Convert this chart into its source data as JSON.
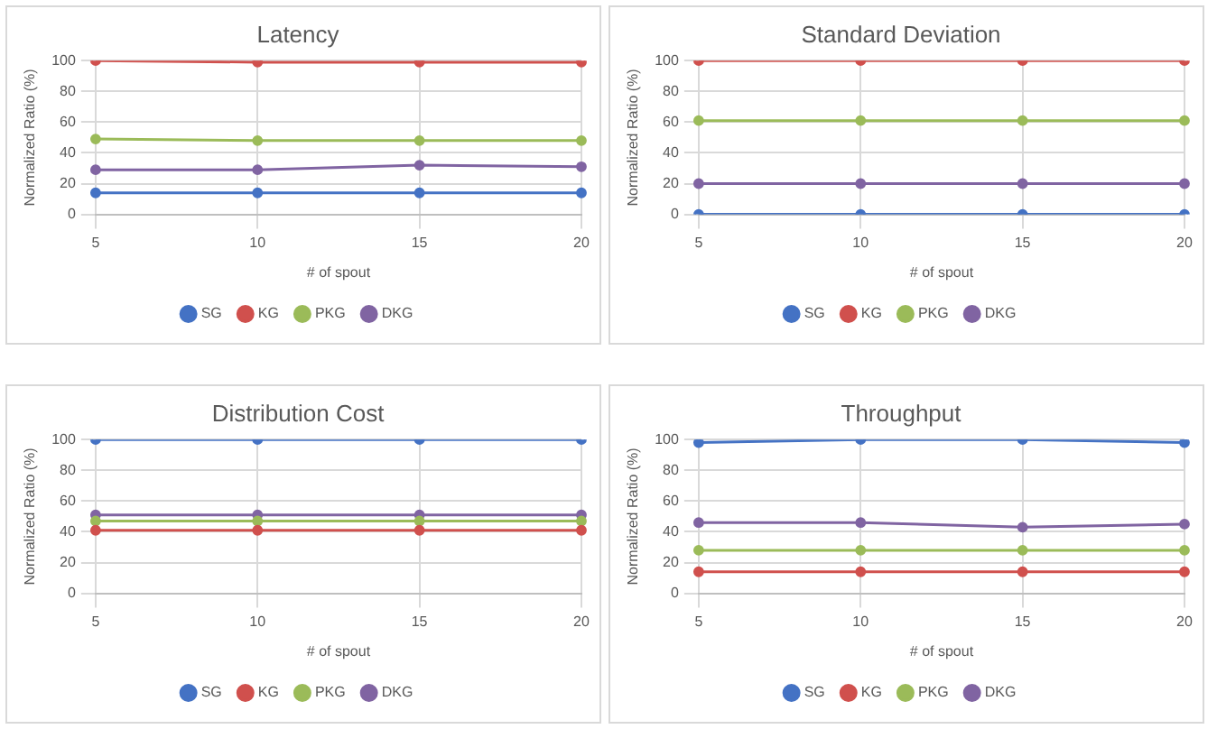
{
  "chart_data": [
    {
      "type": "line",
      "title": "Latency",
      "xlabel": "# of spout",
      "ylabel": "Normalized Ratio (%)",
      "categories": [
        "5",
        "10",
        "15",
        "20"
      ],
      "ylim": [
        0,
        100
      ],
      "yticks": [
        0,
        20,
        40,
        60,
        80,
        100
      ],
      "grid": true,
      "legend": "bottom",
      "marker": "circle",
      "series": [
        {
          "name": "SG",
          "color": "#4472c4",
          "values": [
            14,
            14,
            14,
            14
          ]
        },
        {
          "name": "KG",
          "color": "#d0504d",
          "values": [
            100,
            99,
            99,
            99
          ]
        },
        {
          "name": "PKG",
          "color": "#9bbb59",
          "values": [
            49,
            48,
            48,
            48
          ]
        },
        {
          "name": "DKG",
          "color": "#8064a2",
          "values": [
            29,
            29,
            32,
            31
          ]
        }
      ]
    },
    {
      "type": "line",
      "title": "Standard Deviation",
      "xlabel": "# of spout",
      "ylabel": "Normalized Ratio (%)",
      "categories": [
        "5",
        "10",
        "15",
        "20"
      ],
      "ylim": [
        0,
        100
      ],
      "yticks": [
        0,
        20,
        40,
        60,
        80,
        100
      ],
      "grid": true,
      "legend": "bottom",
      "marker": "circle",
      "series": [
        {
          "name": "SG",
          "color": "#4472c4",
          "values": [
            0,
            0,
            0,
            0
          ]
        },
        {
          "name": "KG",
          "color": "#d0504d",
          "values": [
            100,
            100,
            100,
            100
          ]
        },
        {
          "name": "PKG",
          "color": "#9bbb59",
          "values": [
            61,
            61,
            61,
            61
          ]
        },
        {
          "name": "DKG",
          "color": "#8064a2",
          "values": [
            20,
            20,
            20,
            20
          ]
        }
      ]
    },
    {
      "type": "line",
      "title": "Distribution Cost",
      "xlabel": "# of spout",
      "ylabel": "Normalized Ratio (%)",
      "categories": [
        "5",
        "10",
        "15",
        "20"
      ],
      "ylim": [
        0,
        100
      ],
      "yticks": [
        0,
        20,
        40,
        60,
        80,
        100
      ],
      "grid": true,
      "legend": "bottom",
      "marker": "circle",
      "series": [
        {
          "name": "SG",
          "color": "#4472c4",
          "values": [
            100,
            100,
            100,
            100
          ]
        },
        {
          "name": "KG",
          "color": "#d0504d",
          "values": [
            41,
            41,
            41,
            41
          ]
        },
        {
          "name": "PKG",
          "color": "#9bbb59",
          "values": [
            47,
            47,
            47,
            47
          ]
        },
        {
          "name": "DKG",
          "color": "#8064a2",
          "values": [
            51,
            51,
            51,
            51
          ]
        }
      ]
    },
    {
      "type": "line",
      "title": "Throughput",
      "xlabel": "# of spout",
      "ylabel": "Normalized Ratio (%)",
      "categories": [
        "5",
        "10",
        "15",
        "20"
      ],
      "ylim": [
        0,
        100
      ],
      "yticks": [
        0,
        20,
        40,
        60,
        80,
        100
      ],
      "grid": true,
      "legend": "bottom",
      "marker": "circle",
      "series": [
        {
          "name": "SG",
          "color": "#4472c4",
          "values": [
            98,
            100,
            100,
            98
          ]
        },
        {
          "name": "KG",
          "color": "#d0504d",
          "values": [
            14,
            14,
            14,
            14
          ]
        },
        {
          "name": "PKG",
          "color": "#9bbb59",
          "values": [
            28,
            28,
            28,
            28
          ]
        },
        {
          "name": "DKG",
          "color": "#8064a2",
          "values": [
            46,
            46,
            43,
            45
          ]
        }
      ]
    }
  ]
}
